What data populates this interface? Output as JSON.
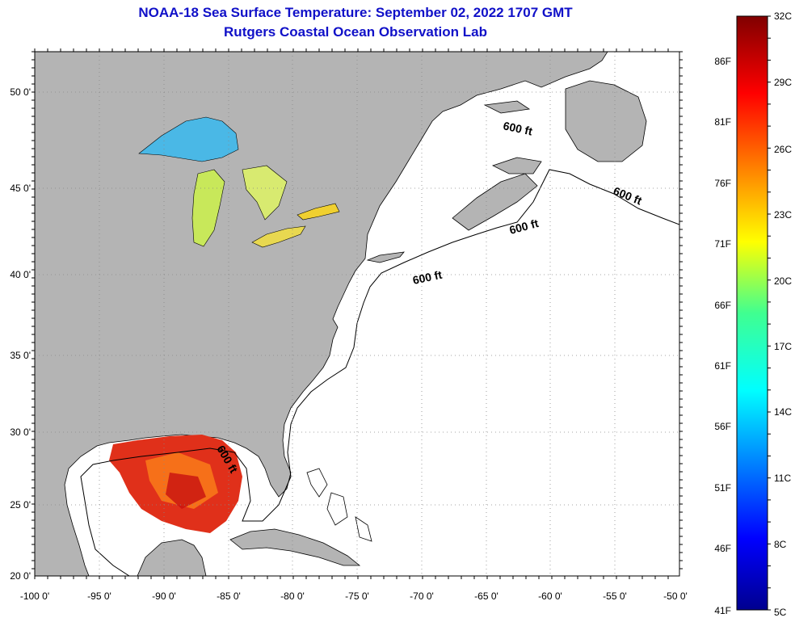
{
  "header": {
    "title": "NOAA-18 Sea Surface Temperature:  September 02, 2022 1707 GMT",
    "subtitle": "Rutgers Coastal Ocean Observation Lab"
  },
  "map": {
    "lon_range": [
      -100,
      -50
    ],
    "lat_range": [
      20,
      52.5
    ],
    "lon_ticks": [
      "-100 0'",
      "-95 0'",
      "-90 0'",
      "-85 0'",
      "-80 0'",
      "-75 0'",
      "-70 0'",
      "-65 0'",
      "-60 0'",
      "-55 0'",
      "-50 0'"
    ],
    "lat_ticks": [
      "20 0'",
      "25 0'",
      "30 0'",
      "35 0'",
      "40 0'",
      "45 0'",
      "50 0'"
    ],
    "contour_label": "600 ft",
    "colors": {
      "land": "#b4b4b4",
      "ocean": "#ffffff",
      "grid": "#888888"
    }
  },
  "colorbar": {
    "celsius_labels": [
      "32C",
      "29C",
      "26C",
      "23C",
      "20C",
      "17C",
      "14C",
      "11C",
      "8C",
      "5C"
    ],
    "fahrenheit_labels": [
      "86F",
      "81F",
      "76F",
      "71F",
      "66F",
      "61F",
      "56F",
      "51F",
      "46F",
      "41F"
    ],
    "range_c": [
      5,
      32
    ]
  }
}
